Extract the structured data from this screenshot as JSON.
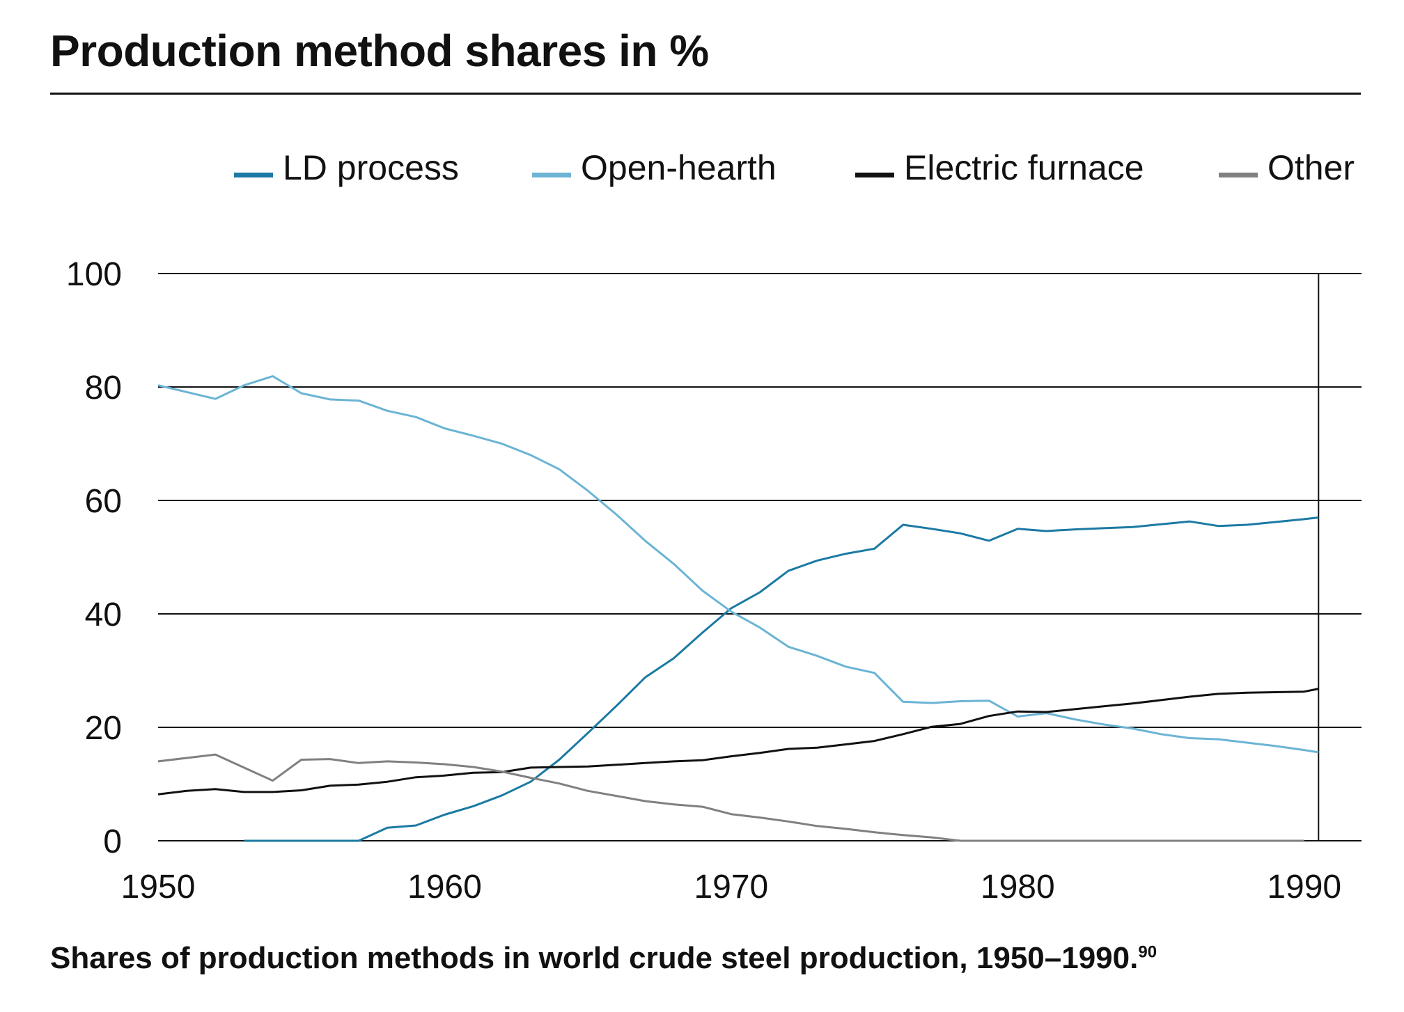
{
  "title": "Production method shares in %",
  "caption": "Shares of production methods in world crude steel production, 1950–1990.",
  "caption_note": "90",
  "chart_data": {
    "type": "line",
    "title": "Production method shares in %",
    "xlim": [
      1950,
      1992
    ],
    "ylim": [
      0,
      100
    ],
    "x_ticks": [
      "1950",
      "1960",
      "1970",
      "1980",
      "1990"
    ],
    "y_ticks": [
      "0",
      "20",
      "40",
      "60",
      "80",
      "100"
    ],
    "grid": "horizontal",
    "legend_position": "top",
    "series": [
      {
        "name": "LD process",
        "color": "#1b7aa3",
        "points": [
          [
            1953,
            0
          ],
          [
            1954,
            0
          ],
          [
            1955,
            0
          ],
          [
            1956,
            0
          ],
          [
            1957,
            0
          ],
          [
            1958,
            2.3
          ],
          [
            1959,
            2.7
          ],
          [
            1960,
            4.6
          ],
          [
            1961,
            6.1
          ],
          [
            1962,
            8
          ],
          [
            1963,
            10.4
          ],
          [
            1964,
            14.3
          ],
          [
            1965,
            19
          ],
          [
            1966,
            23.8
          ],
          [
            1967,
            28.8
          ],
          [
            1968,
            32.2
          ],
          [
            1969,
            36.7
          ],
          [
            1970,
            41
          ],
          [
            1971,
            43.8
          ],
          [
            1972,
            47.6
          ],
          [
            1973,
            49.4
          ],
          [
            1974,
            50.6
          ],
          [
            1975,
            51.5
          ],
          [
            1976,
            55.7
          ],
          [
            1977,
            55
          ],
          [
            1978,
            54.2
          ],
          [
            1979,
            52.9
          ],
          [
            1980,
            55
          ],
          [
            1981,
            54.6
          ],
          [
            1982,
            54.9
          ],
          [
            1983,
            55.1
          ],
          [
            1984,
            55.3
          ],
          [
            1985,
            55.8
          ],
          [
            1986,
            56.3
          ],
          [
            1987,
            55.5
          ],
          [
            1988,
            55.7
          ],
          [
            1989,
            56.2
          ],
          [
            1990,
            56.7
          ],
          [
            1990.5,
            57
          ]
        ]
      },
      {
        "name": "Open-hearth",
        "color": "#6bb4d4",
        "points": [
          [
            1950,
            80.3
          ],
          [
            1951,
            79.1
          ],
          [
            1952,
            77.9
          ],
          [
            1953,
            80.3
          ],
          [
            1954,
            81.9
          ],
          [
            1955,
            78.9
          ],
          [
            1956,
            77.8
          ],
          [
            1957,
            77.6
          ],
          [
            1958,
            75.8
          ],
          [
            1959,
            74.7
          ],
          [
            1960,
            72.7
          ],
          [
            1961,
            71.4
          ],
          [
            1962,
            70
          ],
          [
            1963,
            68
          ],
          [
            1964,
            65.5
          ],
          [
            1965,
            61.7
          ],
          [
            1966,
            57.5
          ],
          [
            1967,
            52.9
          ],
          [
            1968,
            48.8
          ],
          [
            1969,
            44.1
          ],
          [
            1970,
            40.4
          ],
          [
            1971,
            37.6
          ],
          [
            1972,
            34.2
          ],
          [
            1973,
            32.6
          ],
          [
            1974,
            30.7
          ],
          [
            1975,
            29.6
          ],
          [
            1976,
            24.5
          ],
          [
            1977,
            24.3
          ],
          [
            1978,
            24.6
          ],
          [
            1979,
            24.7
          ],
          [
            1980,
            21.9
          ],
          [
            1981,
            22.5
          ],
          [
            1982,
            21.4
          ],
          [
            1983,
            20.5
          ],
          [
            1984,
            19.8
          ],
          [
            1985,
            18.8
          ],
          [
            1986,
            18.1
          ],
          [
            1987,
            17.9
          ],
          [
            1988,
            17.3
          ],
          [
            1989,
            16.7
          ],
          [
            1990,
            16
          ],
          [
            1990.5,
            15.6
          ]
        ]
      },
      {
        "name": "Electric furnace",
        "color": "#111111",
        "points": [
          [
            1950,
            8.2
          ],
          [
            1951,
            8.8
          ],
          [
            1952,
            9.1
          ],
          [
            1953,
            8.6
          ],
          [
            1954,
            8.6
          ],
          [
            1955,
            8.9
          ],
          [
            1956,
            9.7
          ],
          [
            1957,
            9.9
          ],
          [
            1958,
            10.4
          ],
          [
            1959,
            11.2
          ],
          [
            1960,
            11.5
          ],
          [
            1961,
            12
          ],
          [
            1962,
            12.1
          ],
          [
            1963,
            12.9
          ],
          [
            1964,
            13
          ],
          [
            1965,
            13.1
          ],
          [
            1966,
            13.4
          ],
          [
            1967,
            13.7
          ],
          [
            1968,
            14
          ],
          [
            1969,
            14.2
          ],
          [
            1970,
            14.9
          ],
          [
            1971,
            15.5
          ],
          [
            1972,
            16.2
          ],
          [
            1973,
            16.4
          ],
          [
            1974,
            17
          ],
          [
            1975,
            17.6
          ],
          [
            1976,
            18.8
          ],
          [
            1977,
            20.1
          ],
          [
            1978,
            20.6
          ],
          [
            1979,
            22
          ],
          [
            1980,
            22.8
          ],
          [
            1981,
            22.7
          ],
          [
            1982,
            23.2
          ],
          [
            1983,
            23.7
          ],
          [
            1984,
            24.2
          ],
          [
            1985,
            24.8
          ],
          [
            1986,
            25.4
          ],
          [
            1987,
            25.9
          ],
          [
            1988,
            26.1
          ],
          [
            1989,
            26.2
          ],
          [
            1990,
            26.3
          ],
          [
            1990.5,
            26.8
          ]
        ]
      },
      {
        "name": "Other",
        "color": "#808080",
        "points": [
          [
            1950,
            14
          ],
          [
            1951,
            14.6
          ],
          [
            1952,
            15.2
          ],
          [
            1953,
            12.9
          ],
          [
            1954,
            10.6
          ],
          [
            1955,
            14.3
          ],
          [
            1956,
            14.4
          ],
          [
            1957,
            13.7
          ],
          [
            1958,
            14
          ],
          [
            1959,
            13.8
          ],
          [
            1960,
            13.5
          ],
          [
            1961,
            13
          ],
          [
            1962,
            12.2
          ],
          [
            1963,
            11.1
          ],
          [
            1964,
            10.1
          ],
          [
            1965,
            8.8
          ],
          [
            1966,
            7.9
          ],
          [
            1967,
            7
          ],
          [
            1968,
            6.4
          ],
          [
            1969,
            6
          ],
          [
            1970,
            4.7
          ],
          [
            1971,
            4.1
          ],
          [
            1972,
            3.4
          ],
          [
            1973,
            2.6
          ],
          [
            1974,
            2.1
          ],
          [
            1975,
            1.5
          ],
          [
            1976,
            1
          ],
          [
            1977,
            0.6
          ],
          [
            1978,
            0
          ],
          [
            1979,
            0
          ],
          [
            1980,
            0
          ],
          [
            1981,
            0
          ],
          [
            1982,
            0
          ],
          [
            1983,
            0
          ],
          [
            1984,
            0
          ],
          [
            1985,
            0
          ],
          [
            1986,
            0
          ],
          [
            1987,
            0
          ],
          [
            1988,
            0
          ],
          [
            1989,
            0
          ],
          [
            1990,
            0
          ]
        ]
      }
    ]
  }
}
